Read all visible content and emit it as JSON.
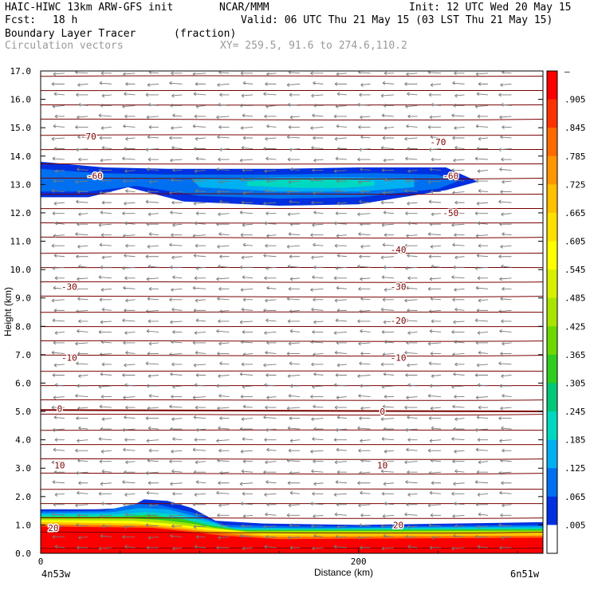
{
  "header": {
    "model": "HAIC-HIWC 13km ARW-GFS init",
    "org": "NCAR/MMM",
    "init": "Init: 12 UTC Wed 20 May 15",
    "fcst_label": "Fcst:",
    "fcst_value": "18 h",
    "valid": "Valid: 06 UTC Thu 21 May 15 (03 LST Thu 21 May 15)",
    "field1": "Boundary Layer Tracer",
    "field1_units": "(fraction)",
    "field2": "Circulation vectors",
    "xy_range": "XY= 259.5, 91.6 to 274.6,110.2"
  },
  "chart_data": {
    "type": "contour-cross-section",
    "xlabel": "Distance (km)",
    "ylabel": "Height (km)",
    "xlim": [
      0,
      316
    ],
    "ylim": [
      0,
      17
    ],
    "x_ticks": [
      "0",
      "200"
    ],
    "y_ticks": [
      "0.0",
      "1.0",
      "2.0",
      "3.0",
      "4.0",
      "5.0",
      "6.0",
      "7.0",
      "8.0",
      "9.0",
      "10.0",
      "11.0",
      "12.0",
      "13.0",
      "14.0",
      "15.0",
      "16.0",
      "17.0"
    ],
    "left_endpoint_label": "4n53w",
    "right_endpoint_label": "6n51w",
    "colorbar": {
      "labels": [
        "–",
        ".905",
        ".845",
        ".785",
        ".725",
        ".665",
        ".605",
        ".545",
        ".485",
        ".425",
        ".365",
        ".305",
        ".245",
        ".185",
        ".125",
        ".065",
        ".005"
      ],
      "colors": [
        "#fa0000",
        "#fc3300",
        "#fd6a00",
        "#fd9600",
        "#ffc000",
        "#ffe000",
        "#ffff00",
        "#d8f000",
        "#a8e400",
        "#6cd800",
        "#30cc20",
        "#00c878",
        "#00d8c0",
        "#00b0f0",
        "#0070f0",
        "#0030e0",
        "#ffffff"
      ]
    },
    "temperature_contour_labels": [
      {
        "value": "-70",
        "x": 30,
        "y": 14.7
      },
      {
        "value": "-70",
        "x": 250,
        "y": 14.5
      },
      {
        "value": "-60",
        "x": 34,
        "y": 13.3
      },
      {
        "value": "-60",
        "x": 258,
        "y": 13.3
      },
      {
        "value": "-50",
        "x": 258,
        "y": 12.0
      },
      {
        "value": "-40",
        "x": 225,
        "y": 10.7
      },
      {
        "value": "-30",
        "x": 18,
        "y": 9.4
      },
      {
        "value": "-30",
        "x": 225,
        "y": 9.4
      },
      {
        "value": "-20",
        "x": 225,
        "y": 8.2
      },
      {
        "value": "-10",
        "x": 18,
        "y": 6.9
      },
      {
        "value": "-10",
        "x": 225,
        "y": 6.9
      },
      {
        "value": "0",
        "x": 12,
        "y": 5.1
      },
      {
        "value": "0",
        "x": 215,
        "y": 5.0
      },
      {
        "value": "10",
        "x": 12,
        "y": 3.1
      },
      {
        "value": "10",
        "x": 215,
        "y": 3.1
      },
      {
        "value": "20",
        "x": 8,
        "y": 0.9
      },
      {
        "value": "20",
        "x": 225,
        "y": 1.0
      }
    ]
  }
}
